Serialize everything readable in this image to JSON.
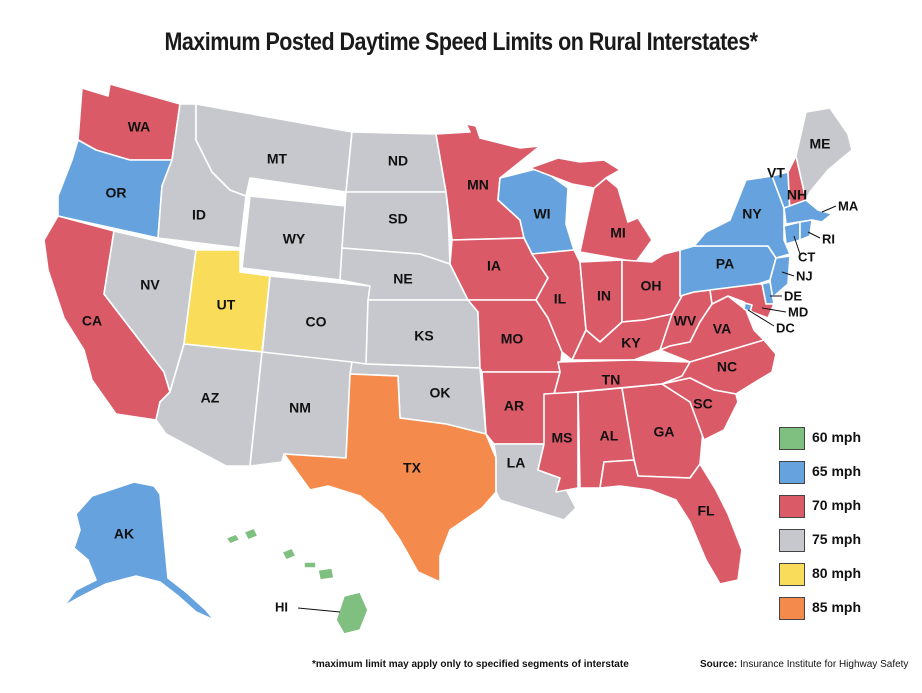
{
  "title": "Maximum Posted Daytime Speed Limits on Rural Interstates*",
  "colors": {
    "60 mph": "#7fbf80",
    "65 mph": "#66a3de",
    "70 mph": "#da5a68",
    "75 mph": "#c6c8cd",
    "80 mph": "#f8dc5a",
    "85 mph": "#f48b4c"
  },
  "legend": [
    {
      "label": "60 mph",
      "color": "#7fbf80"
    },
    {
      "label": "65 mph",
      "color": "#66a3de"
    },
    {
      "label": "70 mph",
      "color": "#da5a68"
    },
    {
      "label": "75 mph",
      "color": "#c6c8cd"
    },
    {
      "label": "80 mph",
      "color": "#f8dc5a"
    },
    {
      "label": "85 mph",
      "color": "#f48b4c"
    }
  ],
  "states": {
    "WA": "70 mph",
    "OR": "65 mph",
    "CA": "70 mph",
    "NV": "75 mph",
    "ID": "75 mph",
    "MT": "75 mph",
    "WY": "75 mph",
    "UT": "80 mph",
    "AZ": "75 mph",
    "CO": "75 mph",
    "NM": "75 mph",
    "ND": "75 mph",
    "SD": "75 mph",
    "NE": "75 mph",
    "KS": "75 mph",
    "OK": "75 mph",
    "TX": "85 mph",
    "MN": "70 mph",
    "IA": "70 mph",
    "MO": "70 mph",
    "AR": "70 mph",
    "LA": "75 mph",
    "WI": "65 mph",
    "IL": "70 mph",
    "MI": "70 mph",
    "IN": "70 mph",
    "OH": "70 mph",
    "KY": "70 mph",
    "TN": "70 mph",
    "MS": "70 mph",
    "AL": "70 mph",
    "GA": "70 mph",
    "FL": "70 mph",
    "SC": "70 mph",
    "NC": "70 mph",
    "VA": "70 mph",
    "WV": "70 mph",
    "PA": "65 mph",
    "NY": "65 mph",
    "VT": "65 mph",
    "NH": "70 mph",
    "ME": "75 mph",
    "MA": "65 mph",
    "RI": "65 mph",
    "CT": "65 mph",
    "NJ": "65 mph",
    "DE": "65 mph",
    "MD": "70 mph",
    "DC": "65 mph",
    "AK": "65 mph",
    "HI": "60 mph"
  },
  "footnote": "*maximum limit may apply only to specified segments of interstate",
  "source": {
    "label": "Source:",
    "text": "Insurance Institute for Highway Safety"
  }
}
